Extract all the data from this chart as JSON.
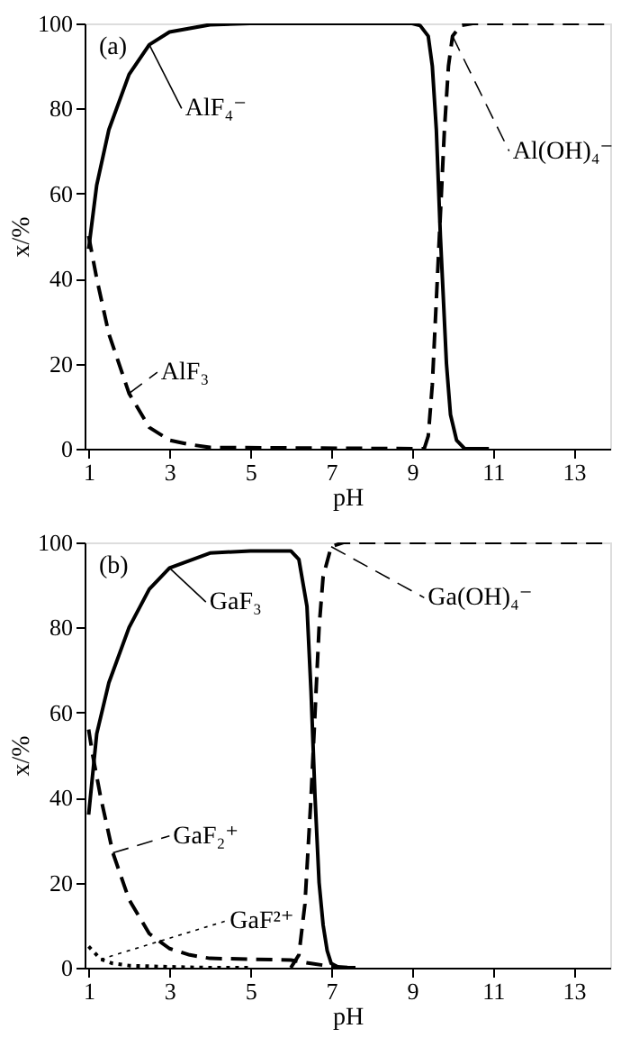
{
  "chart_data": [
    {
      "type": "line",
      "title": "(a)",
      "xlabel": "pH",
      "ylabel": "x/%",
      "xlim": [
        0.9,
        13.9
      ],
      "ylim": [
        0,
        100
      ],
      "xticks": [
        1,
        3,
        5,
        7,
        9,
        11,
        13
      ],
      "yticks": [
        0,
        20,
        40,
        60,
        80,
        100
      ],
      "grid": false,
      "series": [
        {
          "name": "AlF₄⁻",
          "color": "#000000",
          "line_style": "solid",
          "x": [
            1,
            1.2,
            1.5,
            2,
            2.5,
            3,
            4,
            5,
            9,
            9.2,
            9.4,
            9.5,
            9.6,
            9.7,
            9.75,
            9.85,
            9.95,
            10.1,
            10.3,
            10.9
          ],
          "values": [
            47,
            62,
            75,
            88,
            95,
            98,
            99.7,
            100,
            100,
            99.5,
            97,
            90,
            75,
            50,
            40,
            20,
            8,
            2,
            0,
            0
          ]
        },
        {
          "name": "AlF₃",
          "color": "#000000",
          "line_style": "dashed",
          "x": [
            1,
            1.2,
            1.5,
            2,
            2.5,
            3,
            3.5,
            4,
            9.3
          ],
          "values": [
            50,
            40,
            27,
            13,
            5,
            2,
            1,
            0.3,
            0
          ]
        },
        {
          "name": "Al(OH)₄⁻",
          "color": "#000000",
          "line_style": "dashed",
          "x": [
            9.3,
            9.4,
            9.5,
            9.6,
            9.7,
            9.8,
            9.9,
            10,
            10.2,
            10.5,
            13.9
          ],
          "values": [
            0,
            3,
            15,
            35,
            55,
            75,
            90,
            97,
            99.5,
            100,
            100
          ]
        }
      ]
    },
    {
      "type": "line",
      "title": "(b)",
      "xlabel": "pH",
      "ylabel": "x/%",
      "xlim": [
        0.9,
        13.9
      ],
      "ylim": [
        0,
        100
      ],
      "xticks": [
        1,
        3,
        5,
        7,
        9,
        11,
        13
      ],
      "yticks": [
        0,
        20,
        40,
        60,
        80,
        100
      ],
      "grid": false,
      "series": [
        {
          "name": "GaF₃",
          "color": "#000000",
          "line_style": "solid",
          "x": [
            1,
            1.2,
            1.5,
            2,
            2.5,
            3,
            4,
            5,
            6,
            6.2,
            6.4,
            6.5,
            6.6,
            6.7,
            6.8,
            6.9,
            7,
            7.2,
            7.6
          ],
          "values": [
            36,
            55,
            67,
            80,
            89,
            94,
            97.5,
            98,
            98,
            96,
            85,
            65,
            40,
            20,
            10,
            4,
            1,
            0,
            0
          ]
        },
        {
          "name": "GaF₂⁺",
          "color": "#000000",
          "line_style": "dashed",
          "x": [
            1,
            1.1,
            1.3,
            1.6,
            2,
            2.5,
            3,
            3.5,
            4,
            5,
            6,
            6.5,
            7,
            7.5
          ],
          "values": [
            56,
            50,
            40,
            27,
            16,
            8,
            4.5,
            3,
            2.2,
            2,
            1.8,
            1,
            0.3,
            0
          ]
        },
        {
          "name": "GaF²⁺",
          "color": "#000000",
          "line_style": "dotted",
          "x": [
            1,
            1.3,
            1.6,
            2,
            3,
            4,
            5
          ],
          "values": [
            5,
            2,
            1,
            0.5,
            0.2,
            0,
            0
          ]
        },
        {
          "name": "Ga(OH)₄⁻",
          "color": "#000000",
          "line_style": "dashed",
          "x": [
            6,
            6.2,
            6.35,
            6.5,
            6.6,
            6.7,
            6.8,
            7,
            7.3,
            13.9
          ],
          "values": [
            0,
            3,
            15,
            40,
            60,
            80,
            92,
            99,
            100,
            100
          ]
        }
      ]
    }
  ]
}
